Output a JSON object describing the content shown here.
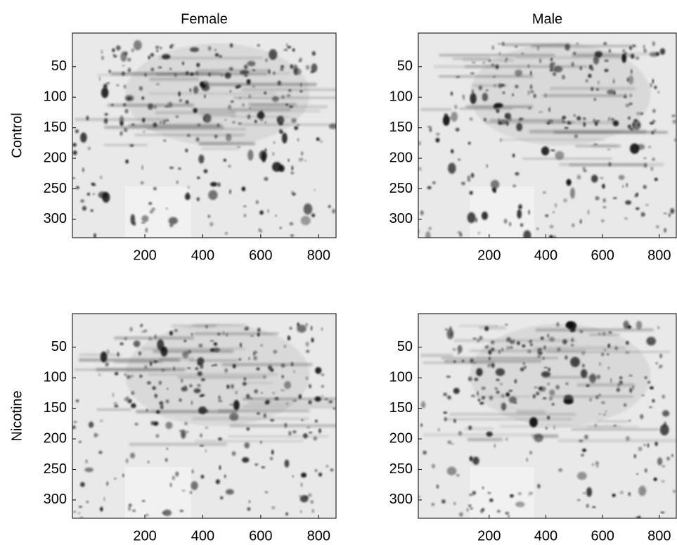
{
  "chart_data": [
    {
      "type": "image",
      "title": "Female",
      "ylabel": "Control",
      "xlim": [
        -50,
        860
      ],
      "ylim": [
        -5,
        330
      ],
      "yreverse": true,
      "xticks": [
        200,
        400,
        600,
        800
      ],
      "yticks": [
        50,
        100,
        150,
        200,
        250,
        300
      ]
    },
    {
      "type": "image",
      "title": "Male",
      "xlim": [
        -50,
        860
      ],
      "ylim": [
        -5,
        330
      ],
      "yreverse": true,
      "xticks": [
        200,
        400,
        600,
        800
      ],
      "yticks": [
        50,
        100,
        150,
        200,
        250,
        300
      ]
    },
    {
      "type": "image",
      "ylabel": "Nicotine",
      "xlim": [
        -50,
        860
      ],
      "ylim": [
        -5,
        330
      ],
      "yreverse": true,
      "xticks": [
        200,
        400,
        600,
        800
      ],
      "yticks": [
        50,
        100,
        150,
        200,
        250,
        300
      ]
    },
    {
      "type": "image",
      "xlim": [
        -50,
        860
      ],
      "ylim": [
        -5,
        330
      ],
      "yreverse": true,
      "xticks": [
        200,
        400,
        600,
        800
      ],
      "yticks": [
        50,
        100,
        150,
        200,
        250,
        300
      ]
    }
  ]
}
